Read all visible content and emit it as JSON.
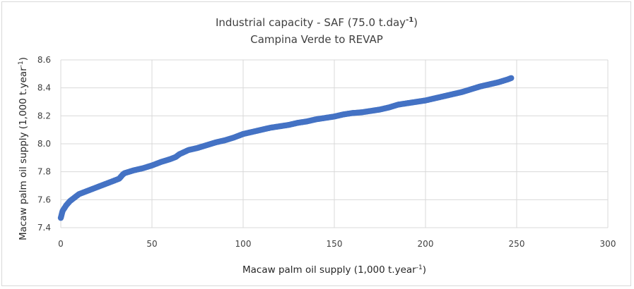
{
  "chart_data": {
    "type": "scatter",
    "title_line1": "Industrial capacity - SAF (75.0 t.day",
    "title_sup": "-1",
    "title_end": ")",
    "subtitle": "Campina Verde to REVAP",
    "xlabel_main": "Macaw palm oil supply (1,000 t.year",
    "xlabel_sup": "-1",
    "xlabel_end": ")",
    "ylabel_main": "Macaw palm oil supply (1,000 t.year",
    "ylabel_sup": "-1",
    "ylabel_end": ")",
    "xlim": [
      0,
      300
    ],
    "ylim": [
      7.4,
      8.6
    ],
    "x_ticks": [
      "0",
      "50",
      "100",
      "150",
      "200",
      "250",
      "300"
    ],
    "y_ticks": [
      "7.4",
      "7.6",
      "7.8",
      "8.0",
      "8.2",
      "8.4",
      "8.6"
    ],
    "grid": true,
    "legend": "none",
    "marker_color": "#4472c4",
    "series": [
      {
        "x": [
          0,
          1,
          2,
          3,
          5,
          8,
          10,
          13,
          15,
          20,
          25,
          30,
          32,
          33,
          34,
          35,
          40,
          45,
          50,
          55,
          60,
          63,
          65,
          70,
          75,
          80,
          85,
          90,
          95,
          97,
          100,
          105,
          110,
          115,
          120,
          125,
          130,
          135,
          140,
          145,
          150,
          155,
          160,
          165,
          170,
          175,
          180,
          185,
          190,
          195,
          200,
          205,
          210,
          215,
          220,
          225,
          230,
          235,
          240,
          245,
          247
        ],
        "y": [
          7.47,
          7.52,
          7.54,
          7.56,
          7.59,
          7.62,
          7.64,
          7.655,
          7.665,
          7.69,
          7.715,
          7.74,
          7.75,
          7.765,
          7.78,
          7.79,
          7.81,
          7.825,
          7.845,
          7.87,
          7.89,
          7.905,
          7.925,
          7.955,
          7.97,
          7.99,
          8.01,
          8.025,
          8.045,
          8.055,
          8.07,
          8.085,
          8.1,
          8.115,
          8.125,
          8.135,
          8.15,
          8.16,
          8.175,
          8.185,
          8.195,
          8.21,
          8.22,
          8.225,
          8.235,
          8.245,
          8.26,
          8.28,
          8.29,
          8.3,
          8.31,
          8.325,
          8.34,
          8.355,
          8.37,
          8.39,
          8.41,
          8.425,
          8.44,
          8.46,
          8.47
        ]
      }
    ]
  }
}
